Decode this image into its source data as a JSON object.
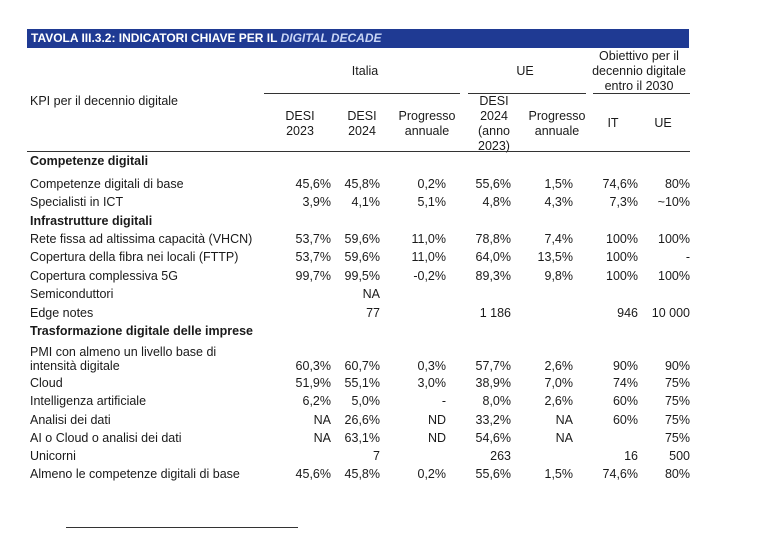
{
  "title": {
    "prefix": "TAVOLA III.3.2: INDICATORI CHIAVE PER IL ",
    "italic": "DIGITAL DECADE"
  },
  "header": {
    "kpi_label": "KPI per il decennio digitale",
    "group_italia": "Italia",
    "group_ue": "UE",
    "group_obiettivo": [
      "Obiettivo per il",
      "decennio digitale",
      "entro il 2030"
    ],
    "columns": [
      {
        "lines": [
          "DESI",
          "2023"
        ]
      },
      {
        "lines": [
          "DESI",
          "2024"
        ]
      },
      {
        "lines": [
          "Progresso",
          "annuale"
        ]
      },
      {
        "lines": [
          "DESI",
          "2024",
          "(anno",
          "2023)"
        ]
      },
      {
        "lines": [
          "Progresso",
          "annuale"
        ]
      },
      {
        "lines": [
          "IT"
        ]
      },
      {
        "lines": [
          "UE"
        ]
      }
    ]
  },
  "rows": [
    {
      "type": "section",
      "label": "Competenze digitali"
    },
    {
      "type": "data",
      "label": "Competenze digitali di base",
      "values": [
        "45,6%",
        "45,8%",
        "0,2%",
        "55,6%",
        "1,5%",
        "74,6%",
        "80%"
      ]
    },
    {
      "type": "data",
      "label": "Specialisti in ICT",
      "values": [
        "3,9%",
        "4,1%",
        "5,1%",
        "4,8%",
        "4,3%",
        "7,3%",
        "~10%"
      ]
    },
    {
      "type": "section",
      "label": "Infrastrutture digitali"
    },
    {
      "type": "data",
      "label": "Rete fissa ad altissima capacità (VHCN)",
      "values": [
        "53,7%",
        "59,6%",
        "11,0%",
        "78,8%",
        "7,4%",
        "100%",
        "100%"
      ]
    },
    {
      "type": "data",
      "label": "Copertura della fibra nei locali (FTTP)",
      "values": [
        "53,7%",
        "59,6%",
        "11,0%",
        "64,0%",
        "13,5%",
        "100%",
        "-"
      ]
    },
    {
      "type": "data",
      "label": "Copertura complessiva 5G",
      "values": [
        "99,7%",
        "99,5%",
        "-0,2%",
        "89,3%",
        "9,8%",
        "100%",
        "100%"
      ]
    },
    {
      "type": "data",
      "label": "Semiconduttori",
      "values": [
        "",
        "NA",
        "",
        "",
        "",
        "",
        ""
      ]
    },
    {
      "type": "data",
      "label": "Edge notes",
      "values": [
        "",
        "77",
        "",
        "1 186",
        "",
        "946",
        "10 000"
      ]
    },
    {
      "type": "section",
      "label": "Trasformazione digitale delle imprese"
    },
    {
      "type": "data2",
      "label": [
        "PMI con almeno un livello base di",
        "intensità digitale"
      ],
      "values": [
        "60,3%",
        "60,7%",
        "0,3%",
        "57,7%",
        "2,6%",
        "90%",
        "90%"
      ]
    },
    {
      "type": "data",
      "label": "Cloud",
      "values": [
        "51,9%",
        "55,1%",
        "3,0%",
        "38,9%",
        "7,0%",
        "74%",
        "75%"
      ]
    },
    {
      "type": "data",
      "label": "Intelligenza artificiale",
      "values": [
        "6,2%",
        "5,0%",
        "-",
        "8,0%",
        "2,6%",
        "60%",
        "75%"
      ]
    },
    {
      "type": "data",
      "label": "Analisi dei dati",
      "values": [
        "NA",
        "26,6%",
        "ND",
        "33,2%",
        "NA",
        "60%",
        "75%"
      ]
    },
    {
      "type": "data",
      "label": "AI o Cloud o analisi dei dati",
      "values": [
        "NA",
        "63,1%",
        "ND",
        "54,6%",
        "NA",
        "",
        "75%"
      ]
    },
    {
      "type": "data",
      "label": "Unicorni",
      "values": [
        "",
        "7",
        "",
        "263",
        "",
        "16",
        "500"
      ]
    },
    {
      "type": "data",
      "label": "Almeno le competenze digitali di base",
      "values": [
        "45,6%",
        "45,8%",
        "0,2%",
        "55,6%",
        "1,5%",
        "74,6%",
        "80%"
      ]
    }
  ]
}
